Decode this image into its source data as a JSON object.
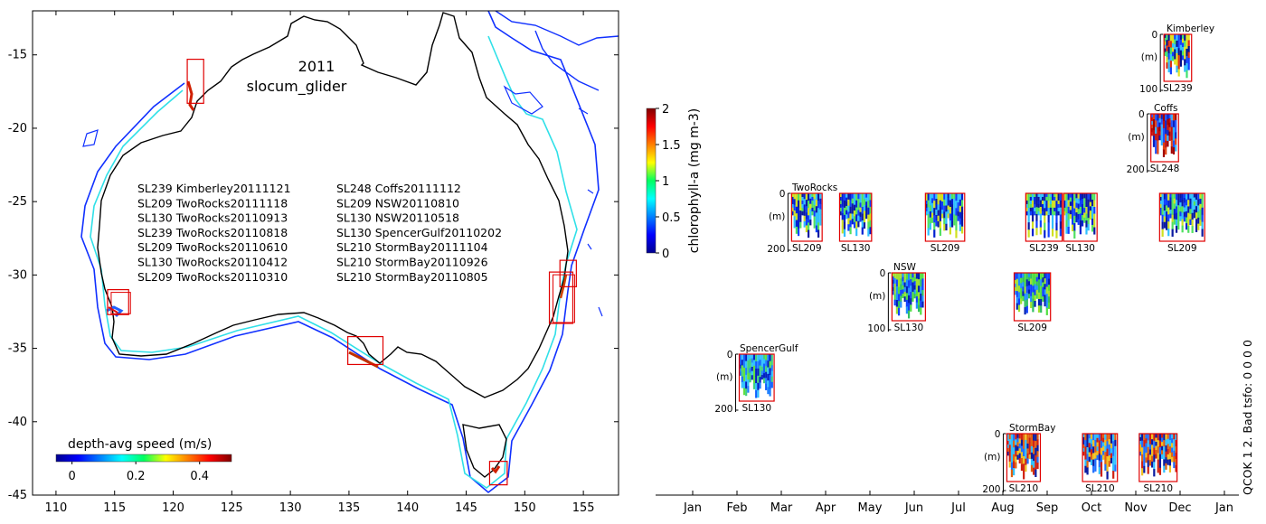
{
  "chart_data": [
    {
      "type": "map",
      "title": "2011",
      "subtitle": "slocum_glider",
      "x_ticks": [
        "110",
        "115",
        "120",
        "125",
        "130",
        "135",
        "140",
        "145",
        "150",
        "155"
      ],
      "y_ticks": [
        "-15",
        "-20",
        "-25",
        "-30",
        "-35",
        "-40",
        "-45"
      ],
      "xlim": [
        108,
        158
      ],
      "ylim": [
        -45,
        -12
      ],
      "mission_list_left": [
        "SL239 Kimberley20111121",
        "SL209 TwoRocks20111118",
        "SL130 TwoRocks20110913",
        "SL239 TwoRocks20110818",
        "SL209 TwoRocks20110610",
        "SL130 TwoRocks20110412",
        "SL209 TwoRocks20110310"
      ],
      "mission_list_right": [
        "SL248 Coffs20111112",
        "SL209 NSW20110810",
        "SL130 NSW20110518",
        "SL130 SpencerGulf20110202",
        "SL210 StormBay20111104",
        "SL210 StormBay20110926",
        "SL210 StormBay20110805"
      ],
      "deployment_areas": [
        {
          "name": "Kimberley",
          "lon": [
            121.2,
            122.6
          ],
          "lat": [
            -15.3,
            -18.3
          ]
        },
        {
          "name": "TwoRocks",
          "lon": [
            114.4,
            116.2
          ],
          "lat": [
            -31.0,
            -32.7
          ]
        },
        {
          "name": "SpencerGulf",
          "lon": [
            134.9,
            137.9
          ],
          "lat": [
            -34.2,
            -36.1
          ]
        },
        {
          "name": "StormBay",
          "lon": [
            147.0,
            148.5
          ],
          "lat": [
            -42.7,
            -44.3
          ]
        },
        {
          "name": "NSW",
          "lon": [
            152.1,
            154.1
          ],
          "lat": [
            -29.8,
            -33.3
          ]
        },
        {
          "name": "Coffs",
          "lon": [
            153.0,
            154.4
          ],
          "lat": [
            -29.0,
            -30.8
          ]
        }
      ],
      "colorbar": {
        "label": "depth-avg speed (m/s)",
        "ticks": [
          "0",
          "0.2",
          "0.4"
        ],
        "range": [
          -0.05,
          0.5
        ]
      }
    },
    {
      "type": "timeline",
      "x_ticks": [
        "Jan",
        "Feb",
        "Mar",
        "Apr",
        "May",
        "Jun",
        "Jul",
        "Aug",
        "Sep",
        "Oct",
        "Nov",
        "Dec",
        "Jan"
      ],
      "colorbar": {
        "label": "chlorophyll-a (mg m-3)",
        "ticks": [
          "0",
          "0.5",
          "1",
          "1.5",
          "2"
        ],
        "range": [
          0,
          2
        ]
      },
      "rows": [
        {
          "name": "Kimberley",
          "depth_ticks": [
            "0",
            "(m)",
            "100"
          ],
          "deployments": [
            {
              "glider": "SL239",
              "start": "2011-11-21",
              "end": "2011-12-10"
            }
          ]
        },
        {
          "name": "Coffs",
          "depth_ticks": [
            "0",
            "(m)",
            "200"
          ],
          "deployments": [
            {
              "glider": "SL248",
              "start": "2011-11-12",
              "end": "2011-12-01"
            }
          ]
        },
        {
          "name": "TwoRocks",
          "depth_ticks": [
            "0",
            "(m)",
            "200"
          ],
          "deployments": [
            {
              "glider": "SL209",
              "start": "2011-03-10",
              "end": "2011-03-31"
            },
            {
              "glider": "SL130",
              "start": "2011-04-12",
              "end": "2011-05-04"
            },
            {
              "glider": "SL209",
              "start": "2011-06-10",
              "end": "2011-07-07"
            },
            {
              "glider": "SL239",
              "start": "2011-08-18",
              "end": "2011-09-12"
            },
            {
              "glider": "SL130",
              "start": "2011-09-13",
              "end": "2011-10-06"
            },
            {
              "glider": "SL209",
              "start": "2011-11-18",
              "end": "2011-12-19"
            }
          ]
        },
        {
          "name": "NSW",
          "depth_ticks": [
            "0",
            "(m)",
            "100"
          ],
          "deployments": [
            {
              "glider": "SL130",
              "start": "2011-05-18",
              "end": "2011-06-10"
            },
            {
              "glider": "SL209",
              "start": "2011-08-10",
              "end": "2011-09-04"
            }
          ]
        },
        {
          "name": "SpencerGulf",
          "depth_ticks": [
            "0",
            "(m)",
            "200"
          ],
          "deployments": [
            {
              "glider": "SL130",
              "start": "2011-02-02",
              "end": "2011-02-26"
            }
          ]
        },
        {
          "name": "StormBay",
          "depth_ticks": [
            "0",
            "(m)",
            "200"
          ],
          "deployments": [
            {
              "glider": "SL210",
              "start": "2011-08-05",
              "end": "2011-08-28"
            },
            {
              "glider": "SL210",
              "start": "2011-09-26",
              "end": "2011-10-20"
            },
            {
              "glider": "SL210",
              "start": "2011-11-04",
              "end": "2011-11-30"
            }
          ]
        }
      ],
      "side_note": "QCOK 1  2. Bad tsfo: 0  0  0  0"
    }
  ]
}
